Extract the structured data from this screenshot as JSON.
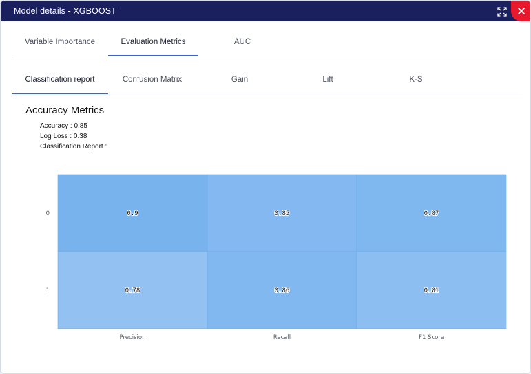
{
  "window": {
    "title": "Model details - XGBOOST",
    "expand_icon": "expand-icon",
    "close_icon": "close-icon",
    "accent_color": "#3b63d6",
    "titlebar_color": "#1a1f5e",
    "close_color": "#e8192c"
  },
  "primary_tabs": [
    {
      "label": "Variable Importance",
      "active": false
    },
    {
      "label": "Evaluation Metrics",
      "active": true
    },
    {
      "label": "AUC",
      "active": false
    }
  ],
  "secondary_tabs": [
    {
      "label": "Classification report",
      "active": true
    },
    {
      "label": "Confusion Matrix",
      "active": false
    },
    {
      "label": "Gain",
      "active": false
    },
    {
      "label": "Lift",
      "active": false
    },
    {
      "label": "K-S",
      "active": false
    }
  ],
  "accuracy": {
    "title": "Accuracy Metrics",
    "metrics": [
      {
        "label": "Accuracy : ",
        "value": "0.85"
      },
      {
        "label": "Log Loss : ",
        "value": "0.38"
      },
      {
        "label": "Classification Report :",
        "value": ""
      }
    ]
  },
  "chart_data": {
    "type": "heatmap",
    "x_categories": [
      "Precision",
      "Recall",
      "F1 Score"
    ],
    "y_categories": [
      "0",
      "1"
    ],
    "values": [
      [
        0.9,
        0.85,
        0.87
      ],
      [
        0.78,
        0.86,
        0.81
      ]
    ],
    "color_low": "#93c2f2",
    "color_high": "#78b3ee"
  }
}
